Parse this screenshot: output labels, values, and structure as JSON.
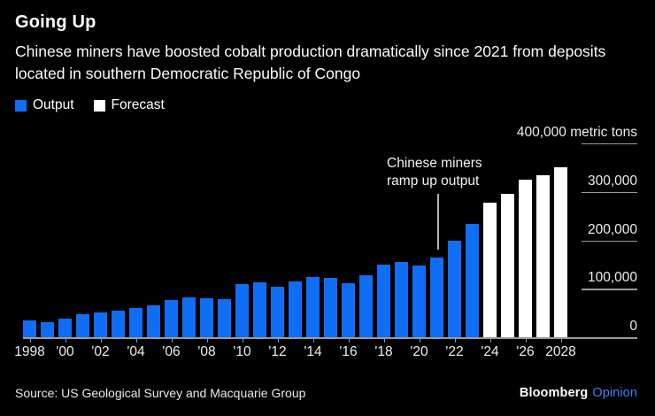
{
  "header": {
    "title": "Going Up",
    "subtitle": "Chinese miners have boosted cobalt production dramatically since 2021 from deposits located in southern Democratic Republic of Congo"
  },
  "legend": [
    {
      "label": "Output",
      "color": "#0f6ef5"
    },
    {
      "label": "Forecast",
      "color": "#ffffff"
    }
  ],
  "annotation": {
    "text": "Chinese miners\nramp up output"
  },
  "chart_data": {
    "type": "bar",
    "title": "Going Up",
    "xlabel": "",
    "ylabel": "metric tons",
    "ylim": [
      0,
      400000
    ],
    "grid": false,
    "legend_position": "top-left",
    "yticks": [
      {
        "label": "400,000 metric tons",
        "value": 400000
      },
      {
        "label": "300,000",
        "value": 300000
      },
      {
        "label": "200,000",
        "value": 200000
      },
      {
        "label": "100,000",
        "value": 100000
      },
      {
        "label": "0",
        "value": 0
      }
    ],
    "xtick_labels": [
      "1998",
      "'00",
      "'02",
      "'04",
      "'06",
      "'08",
      "'10",
      "'12",
      "'14",
      "'16",
      "'18",
      "'20",
      "'22",
      "'24",
      "'26",
      "2028"
    ],
    "xtick_years": [
      1998,
      2000,
      2002,
      2004,
      2006,
      2008,
      2010,
      2012,
      2014,
      2016,
      2018,
      2020,
      2022,
      2024,
      2026,
      2028
    ],
    "categories": [
      1998,
      1999,
      2000,
      2001,
      2002,
      2003,
      2004,
      2005,
      2006,
      2007,
      2008,
      2009,
      2010,
      2011,
      2012,
      2013,
      2014,
      2015,
      2016,
      2017,
      2018,
      2019,
      2020,
      2021,
      2022,
      2023,
      2024,
      2025,
      2026,
      2027,
      2028
    ],
    "series": [
      {
        "name": "Output",
        "years": [
          1998,
          1999,
          2000,
          2001,
          2002,
          2003,
          2004,
          2005,
          2006,
          2007,
          2008,
          2009,
          2010,
          2011,
          2012,
          2013,
          2014,
          2015,
          2016,
          2017,
          2018,
          2019,
          2020,
          2021,
          2022,
          2023
        ],
        "values": [
          35000,
          31000,
          38500,
          47500,
          52000,
          55500,
          61000,
          66000,
          76500,
          82500,
          80000,
          78500,
          110000,
          113000,
          105000,
          115500,
          125000,
          123000,
          112000,
          127000,
          150000,
          155000,
          148000,
          165000,
          199000,
          234000
        ]
      },
      {
        "name": "Forecast",
        "years": [
          2024,
          2025,
          2026,
          2027,
          2028
        ],
        "values": [
          277000,
          295000,
          326000,
          335000,
          350000
        ]
      }
    ],
    "annotation": {
      "text": "Chinese miners ramp up output",
      "points_to_year": 2021
    }
  },
  "footer": {
    "source": "Source: US Geological Survey and Macquarie Group",
    "brand": "Bloomberg",
    "brand_suffix": "Opinion"
  },
  "colors": {
    "background": "#000000",
    "bar_output": "#0f6ef5",
    "bar_forecast": "#ffffff",
    "axis_line": "#9a9a9a",
    "text": "#ffffff",
    "brand_blue": "#3c80f6"
  }
}
